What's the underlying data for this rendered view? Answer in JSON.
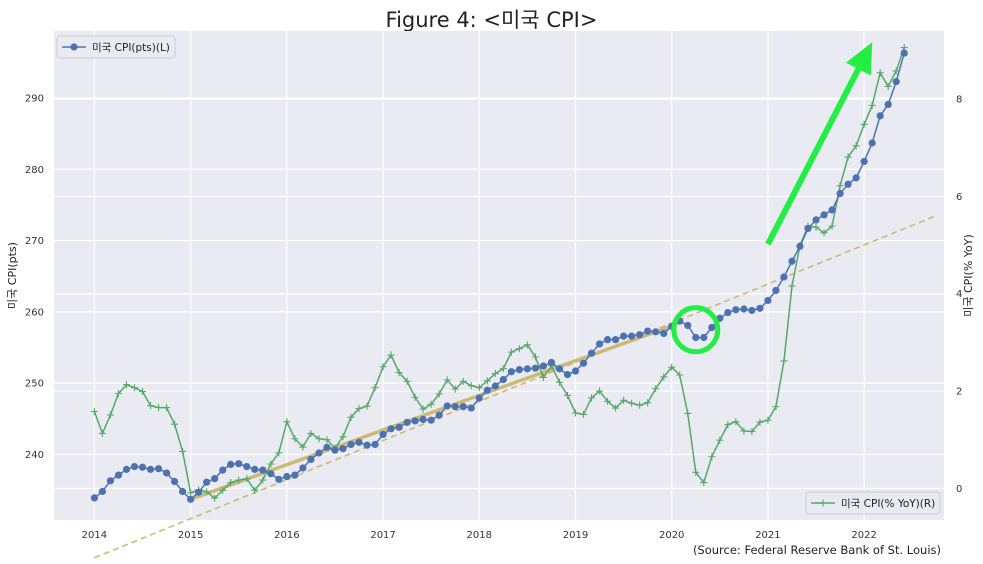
{
  "chart_data": {
    "type": "line",
    "title": "Figure 4: <미국 CPI>",
    "source": "(Source: Federal Reserve Bank of St. Louis)",
    "xlim": [
      2013.58,
      2022.83
    ],
    "x_ticks": [
      "2014",
      "2015",
      "2016",
      "2017",
      "2018",
      "2019",
      "2020",
      "2021",
      "2022"
    ],
    "left_axis": {
      "label": "미국 CPI(pts)",
      "ylim": [
        230.8,
        299.4
      ],
      "ticks": [
        240,
        250,
        260,
        270,
        280,
        290
      ]
    },
    "right_axis": {
      "label": "미국 CPI(% YoY)",
      "ylim": [
        -0.65,
        9.4
      ],
      "ticks": [
        0,
        2,
        4,
        6,
        8
      ]
    },
    "grid": true,
    "colors": {
      "cpi": "#4c72b0",
      "yoy": "#55a868",
      "trend": "#ccb974",
      "arrow": "#22ee44",
      "plot_bg": "#eaeaf2"
    },
    "series": [
      {
        "name": "미국 CPI(pts)(L)",
        "axis": "left",
        "x_start": "2014-01",
        "frequency": "monthly",
        "values": [
          233.9,
          234.8,
          236.3,
          237.1,
          237.9,
          238.3,
          238.2,
          237.9,
          238.0,
          237.4,
          236.2,
          234.8,
          233.7,
          234.7,
          236.1,
          236.6,
          237.8,
          238.6,
          238.7,
          238.3,
          237.9,
          237.8,
          237.3,
          236.5,
          236.9,
          237.1,
          238.1,
          239.3,
          240.2,
          241.0,
          240.6,
          240.8,
          241.4,
          241.7,
          241.3,
          241.4,
          242.8,
          243.6,
          243.8,
          244.5,
          244.7,
          244.9,
          244.8,
          245.5,
          246.8,
          246.7,
          246.7,
          246.5,
          247.9,
          249.0,
          249.6,
          250.5,
          251.6,
          251.9,
          252.0,
          252.1,
          252.4,
          252.9,
          252.0,
          251.2,
          251.7,
          252.8,
          254.2,
          255.5,
          256.1,
          256.1,
          256.6,
          256.6,
          256.8,
          257.3,
          257.2,
          256.97,
          257.97,
          258.7,
          258.1,
          256.4,
          256.4,
          257.8,
          259.1,
          259.9,
          260.3,
          260.4,
          260.2,
          260.5,
          261.6,
          263.0,
          264.9,
          267.1,
          269.2,
          271.7,
          272.9,
          273.6,
          274.3,
          276.6,
          277.9,
          278.8,
          281.1,
          283.7,
          287.5,
          289.1,
          292.3,
          296.3
        ]
      },
      {
        "name": "미국 CPI(% YoY)(R)",
        "axis": "right",
        "x_start": "2014-01",
        "frequency": "monthly",
        "values": [
          1.58,
          1.13,
          1.51,
          1.95,
          2.13,
          2.07,
          1.99,
          1.7,
          1.66,
          1.66,
          1.32,
          0.76,
          -0.09,
          -0.03,
          -0.07,
          -0.2,
          -0.04,
          0.12,
          0.17,
          0.2,
          -0.04,
          0.17,
          0.5,
          0.73,
          1.37,
          1.02,
          0.85,
          1.13,
          1.02,
          1.0,
          0.83,
          1.06,
          1.46,
          1.64,
          1.69,
          2.07,
          2.5,
          2.74,
          2.38,
          2.2,
          1.87,
          1.63,
          1.73,
          1.94,
          2.23,
          2.04,
          2.2,
          2.11,
          2.07,
          2.21,
          2.36,
          2.46,
          2.8,
          2.87,
          2.95,
          2.7,
          2.28,
          2.52,
          2.18,
          1.91,
          1.55,
          1.52,
          1.86,
          2.0,
          1.79,
          1.65,
          1.81,
          1.75,
          1.71,
          1.76,
          2.05,
          2.29,
          2.49,
          2.33,
          1.54,
          0.33,
          0.12,
          0.65,
          0.99,
          1.31,
          1.37,
          1.18,
          1.17,
          1.36,
          1.4,
          1.68,
          2.62,
          4.16,
          4.99,
          5.39,
          5.37,
          5.25,
          5.39,
          6.22,
          6.81,
          7.04,
          7.48,
          7.87,
          8.54,
          8.26,
          8.58,
          9.06
        ]
      }
    ],
    "annotations": [
      {
        "type": "trend_segment",
        "from": [
          "2015-01",
          233.7
        ],
        "to": [
          "2020-01",
          258.0
        ]
      },
      {
        "type": "dashed_trend",
        "from": [
          "2014-01",
          225.5
        ],
        "to": [
          "2022-10",
          273.5
        ]
      },
      {
        "type": "circle",
        "center": [
          "2020-04",
          257.5
        ]
      },
      {
        "type": "arrow",
        "from": [
          "2021-01",
          269.5
        ],
        "to": [
          "2022-02",
          297.8
        ]
      }
    ]
  }
}
